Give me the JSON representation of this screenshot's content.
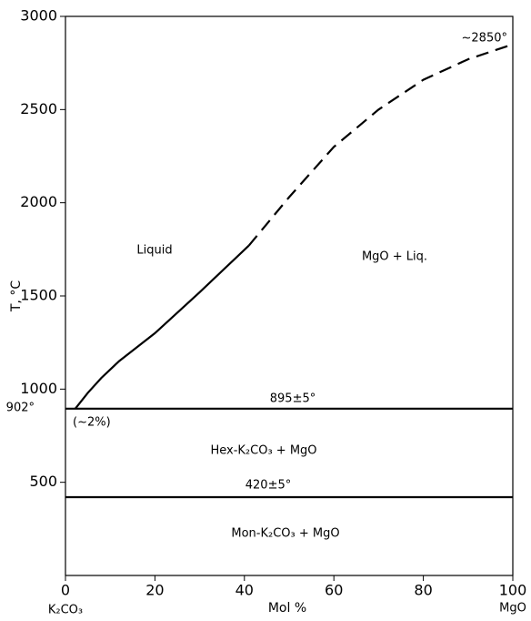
{
  "chart_data": {
    "type": "line",
    "xlabel": "Mol %",
    "ylabel": "T, °C",
    "xlim": [
      0,
      100
    ],
    "ylim": [
      0,
      3000
    ],
    "xticks": [
      0,
      20,
      40,
      60,
      80,
      100
    ],
    "yticks": [
      500,
      1000,
      1500,
      2000,
      2500,
      3000
    ],
    "x_end_labels": [
      "K₂CO₃",
      "MgO"
    ],
    "series": [
      {
        "color": "#000000",
        "style": "solid",
        "x": [
          2.2,
          5,
          8,
          12,
          20,
          30,
          41
        ],
        "values": [
          895,
          980,
          1060,
          1150,
          1300,
          1520,
          1770
        ]
      },
      {
        "color": "#000000",
        "style": "dashed",
        "x": [
          41,
          50,
          60,
          70,
          80,
          90,
          100
        ],
        "values": [
          1770,
          2030,
          2300,
          2500,
          2660,
          2770,
          2850
        ]
      },
      {
        "color": "#000000",
        "style": "solid",
        "x": [
          0,
          100
        ],
        "values": [
          895,
          895
        ]
      },
      {
        "color": "#000000",
        "style": "solid",
        "x": [
          0,
          100
        ],
        "values": [
          420,
          420
        ]
      }
    ],
    "annotations": [
      "Liquid",
      "MgO + Liq.",
      "~2850°",
      "902°",
      "(~2%)",
      "895±5°",
      "Hex-K₂CO₃ + MgO",
      "420±5°",
      "Mon-K₂CO₃ + MgO"
    ]
  }
}
